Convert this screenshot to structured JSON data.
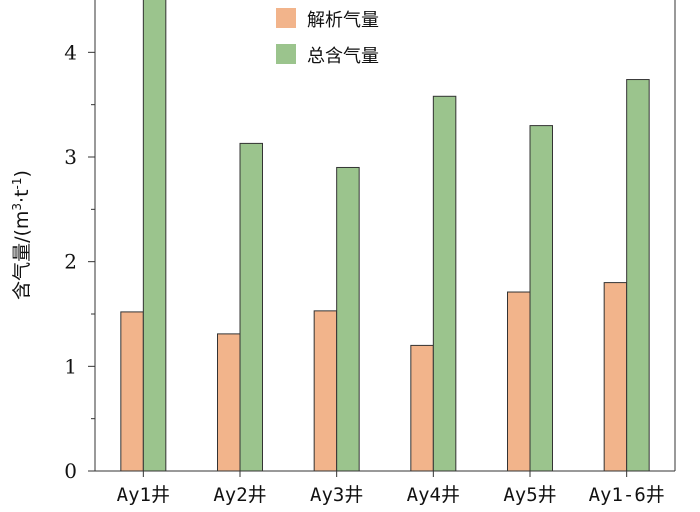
{
  "chart_data": {
    "type": "bar",
    "title": "",
    "xlabel": "",
    "ylabel": "含气量/(m³·t⁻¹)",
    "ylabel_parts": {
      "prefix": "含气量/(m",
      "exp1": "3",
      "mid": "·t",
      "exp2": "-1",
      "suffix": ")"
    },
    "ylim": [
      0,
      4.5
    ],
    "yticks": [
      0,
      1,
      2,
      3,
      4
    ],
    "grid": false,
    "legend_position": "top-center",
    "categories": [
      "Ay1井",
      "Ay2井",
      "Ay3井",
      "Ay4井",
      "Ay5井",
      "Ay1-6井"
    ],
    "series": [
      {
        "name": "解析气量",
        "color": "#f2b48b",
        "values": [
          1.52,
          1.31,
          1.53,
          1.2,
          1.71,
          1.8
        ]
      },
      {
        "name": "总含气量",
        "color": "#9bc48d",
        "values": [
          4.6,
          3.13,
          2.9,
          3.58,
          3.3,
          3.74
        ]
      }
    ]
  }
}
